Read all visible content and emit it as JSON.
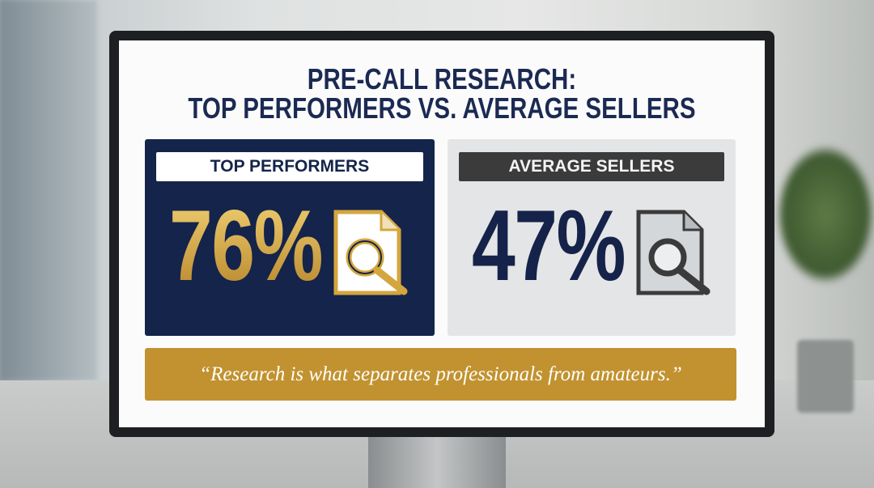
{
  "title": {
    "line1": "PRE-CALL RESEARCH:",
    "line2": "TOP PERFORMERS VS. AVERAGE SELLERS"
  },
  "panels": [
    {
      "label": "TOP PERFORMERS",
      "value": "76%",
      "icon": "document-magnifier-icon",
      "color": "#14244a",
      "accent": "#d4a63e"
    },
    {
      "label": "AVERAGE SELLERS",
      "value": "47%",
      "icon": "document-magnifier-icon",
      "color": "#e4e5e6",
      "accent": "#15234a"
    }
  ],
  "quote": "“Research is what separates professionals from amateurs.”",
  "colors": {
    "navy": "#14244a",
    "gold": "#c1922f"
  }
}
